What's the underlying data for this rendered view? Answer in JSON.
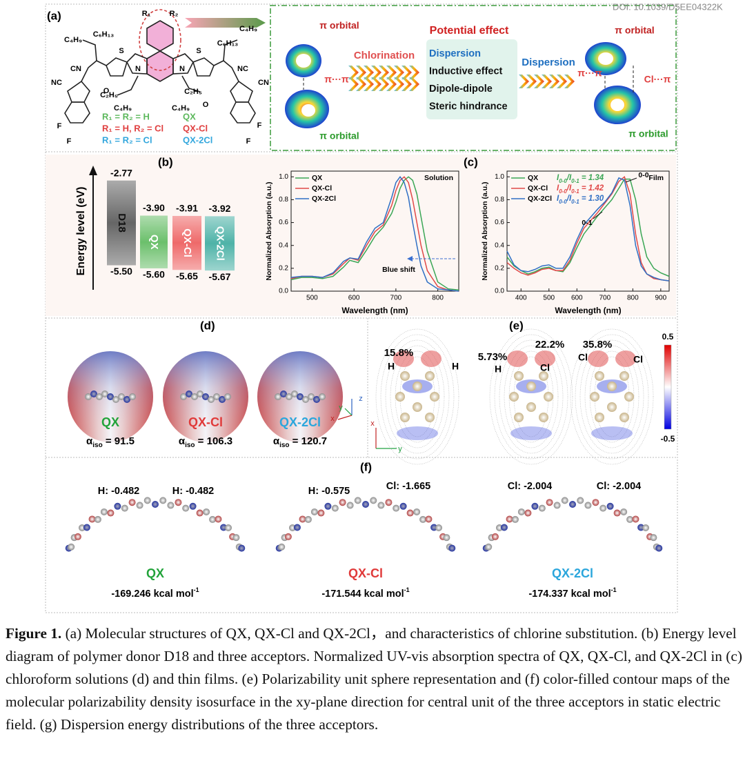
{
  "doi": "DOI: 10.1039/D5EE04322K",
  "panel_a": {
    "label": "(a)",
    "structure_labels": [
      "R₁",
      "R₂",
      "S",
      "S",
      "N",
      "N",
      "C₄H₉",
      "C₆H₁₃",
      "C₄H₉",
      "C₆H₁₃",
      "CN",
      "NC",
      "NC",
      "CN",
      "C₂H₅",
      "C₄H₉",
      "C₂H₅",
      "C₄H₉",
      "O",
      "O",
      "F",
      "F",
      "F",
      "F"
    ],
    "substituents": [
      {
        "text": "R₁ = R₂ = H",
        "name": "QX",
        "color": "#5cb85c"
      },
      {
        "text": "R₁ = H, R₂ = Cl",
        "name": "QX-Cl",
        "color": "#e04040"
      },
      {
        "text": "R₁ = R₂ = Cl",
        "name": "QX-2Cl",
        "color": "#33a7dd"
      }
    ],
    "orbital_labels": [
      "π orbital",
      "π orbital",
      "π orbital",
      "π orbital"
    ],
    "interaction_labels": [
      "π···π",
      "π···π",
      "Cl···π"
    ],
    "chlorination": "Chlorination",
    "potential_title": "Potential effect",
    "effects": [
      "Dispersion",
      "Inductive effect",
      "Dipole-dipole",
      "Steric hindrance"
    ],
    "dispersion": "Dispersion"
  },
  "panel_b": {
    "label": "(b)",
    "axis_label": "Energy level (eV)",
    "levels": [
      {
        "name": "D18",
        "lumo": -2.77,
        "lumo_label": "-2.77",
        "homo": -5.5,
        "homo_label": "-5.50",
        "color": "#666666"
      },
      {
        "name": "QX",
        "lumo": -3.9,
        "lumo_label": "-3.90",
        "homo": -5.6,
        "homo_label": "-5.60",
        "color": "#6cc06c"
      },
      {
        "name": "QX-Cl",
        "lumo": -3.91,
        "lumo_label": "-3.91",
        "homo": -5.65,
        "homo_label": "-5.65",
        "color": "#ee6a6a"
      },
      {
        "name": "QX-2Cl",
        "lumo": -3.92,
        "lumo_label": "-3.92",
        "homo": -5.67,
        "homo_label": "-5.67",
        "color": "#4fb3a8"
      }
    ]
  },
  "panel_c": {
    "label": "(c)"
  },
  "chart_data": [
    {
      "type": "line",
      "annotation": "Solution",
      "arrow_label": "Blue shift",
      "xlabel": "Wavelength (nm)",
      "ylabel": "Normalized Absorption (a.u.)",
      "x": [
        450,
        475,
        500,
        525,
        550,
        575,
        590,
        610,
        630,
        650,
        670,
        690,
        700,
        710,
        720,
        730,
        740,
        750,
        760,
        775,
        800,
        825,
        850
      ],
      "series": [
        {
          "name": "QX",
          "color": "#3aa655",
          "values": [
            0.1,
            0.12,
            0.12,
            0.11,
            0.13,
            0.21,
            0.27,
            0.25,
            0.36,
            0.48,
            0.56,
            0.68,
            0.78,
            0.9,
            0.97,
            1.0,
            0.97,
            0.85,
            0.65,
            0.35,
            0.08,
            0.02,
            0.01
          ]
        },
        {
          "name": "QX-Cl",
          "color": "#e04848",
          "values": [
            0.11,
            0.13,
            0.13,
            0.12,
            0.15,
            0.24,
            0.29,
            0.27,
            0.4,
            0.52,
            0.58,
            0.75,
            0.88,
            0.97,
            1.0,
            0.95,
            0.8,
            0.6,
            0.4,
            0.18,
            0.04,
            0.01,
            0.0
          ]
        },
        {
          "name": "QX-2Cl",
          "color": "#2f6fc4",
          "values": [
            0.12,
            0.13,
            0.13,
            0.12,
            0.16,
            0.26,
            0.29,
            0.28,
            0.43,
            0.55,
            0.6,
            0.82,
            0.95,
            1.0,
            0.95,
            0.82,
            0.6,
            0.4,
            0.22,
            0.08,
            0.02,
            0.01,
            0.0
          ]
        }
      ],
      "xlim": [
        450,
        850
      ],
      "xticks": [
        500,
        600,
        700,
        800
      ],
      "ylim": [
        0,
        1.05
      ],
      "yticks": [
        {
          "value": 0,
          "label": "0.0"
        },
        0.2,
        0.4,
        0.6,
        0.8,
        {
          "value": 1,
          "label": "1.0"
        }
      ]
    },
    {
      "type": "line",
      "annotation": "Film",
      "peak_labels": [
        "0-0",
        "0-1"
      ],
      "xlabel": "Wavelength (nm)",
      "ylabel": "Normalized Absorption (a.u.)",
      "x": [
        350,
        375,
        400,
        425,
        450,
        475,
        500,
        525,
        550,
        575,
        600,
        625,
        650,
        675,
        700,
        725,
        750,
        770,
        790,
        810,
        830,
        850,
        875,
        900,
        930
      ],
      "series": [
        {
          "name": "QX",
          "color": "#3aa655",
          "values": [
            0.3,
            0.22,
            0.18,
            0.15,
            0.17,
            0.2,
            0.21,
            0.18,
            0.17,
            0.25,
            0.38,
            0.5,
            0.58,
            0.66,
            0.73,
            0.8,
            0.9,
            0.98,
            0.98,
            0.8,
            0.5,
            0.3,
            0.2,
            0.16,
            0.13
          ]
        },
        {
          "name": "QX-Cl",
          "color": "#e04848",
          "values": [
            0.25,
            0.2,
            0.16,
            0.14,
            0.16,
            0.19,
            0.2,
            0.18,
            0.18,
            0.27,
            0.42,
            0.55,
            0.62,
            0.69,
            0.77,
            0.85,
            0.96,
            1.0,
            0.85,
            0.5,
            0.25,
            0.15,
            0.11,
            0.1,
            0.09
          ]
        },
        {
          "name": "QX-2Cl",
          "color": "#2f6fc4",
          "values": [
            0.35,
            0.23,
            0.18,
            0.17,
            0.19,
            0.22,
            0.23,
            0.2,
            0.2,
            0.3,
            0.45,
            0.58,
            0.65,
            0.72,
            0.78,
            0.86,
            0.99,
            0.97,
            0.75,
            0.4,
            0.22,
            0.15,
            0.12,
            0.1,
            0.09
          ]
        }
      ],
      "ratio_labels": [
        {
          "a": "I",
          "b": "0-0",
          "c": "/I",
          "d": "0-1",
          "e": " = 1.34"
        },
        {
          "a": "I",
          "b": "0-0",
          "c": "/I",
          "d": "0-1",
          "e": " = 1.42"
        },
        {
          "a": "I",
          "b": "0-0",
          "c": "/I",
          "d": "0-1",
          "e": " = 1.30"
        }
      ],
      "xlim": [
        350,
        930
      ],
      "xticks": [
        400,
        500,
        600,
        700,
        800,
        900
      ],
      "ylim": [
        0,
        1.05
      ],
      "yticks": [
        {
          "value": 0,
          "label": "0.0"
        },
        0.2,
        0.4,
        0.6,
        0.8,
        {
          "value": 1,
          "label": "1.0"
        }
      ]
    }
  ],
  "panel_d": {
    "label": "(d)",
    "axes": [
      "z",
      "y",
      "x"
    ],
    "molecules": [
      {
        "name": "QX",
        "color": "#22a33a",
        "alpha": "α",
        "sub": "iso",
        "value": " = 91.5"
      },
      {
        "name": "QX-Cl",
        "color": "#e03a3a",
        "alpha": "α",
        "sub": "iso",
        "value": " = 106.3"
      },
      {
        "name": "QX-2Cl",
        "color": "#2ba6dc",
        "alpha": "α",
        "sub": "iso",
        "value": " = 120.7"
      }
    ]
  },
  "panel_e": {
    "label": "(e)",
    "percents": [
      "15.8%",
      "5.73%",
      "22.2%",
      "35.8%"
    ],
    "atoms": [
      "H",
      "H",
      "H",
      "Cl",
      "Cl",
      "Cl"
    ],
    "colorbar": [
      "0.5",
      "-0.5"
    ],
    "axes": [
      "x",
      "y"
    ]
  },
  "panel_f": {
    "label": "(f)",
    "charges": [
      "H: -0.482",
      "H: -0.482",
      "H: -0.575",
      "Cl: -1.665",
      "Cl: -2.004",
      "Cl: -2.004"
    ],
    "molecules": [
      {
        "name": "QX",
        "color": "#22a33a",
        "energy": "-169.246 kcal mol",
        "power": "-1"
      },
      {
        "name": "QX-Cl",
        "color": "#e03a3a",
        "energy": "-171.544 kcal mol",
        "power": "-1"
      },
      {
        "name": "QX-2Cl",
        "color": "#2ba6dc",
        "energy": "-174.337 kcal mol",
        "power": "-1"
      }
    ]
  },
  "caption": {
    "bold": "Figure 1.",
    "text": " (a) Molecular structures of QX, QX-Cl and QX-2Cl，and characteristics of chlorine substitution. (b) Energy level diagram of polymer donor D18 and three acceptors. Normalized UV-vis absorption spectra of QX, QX-Cl, and QX-2Cl in (c) chloroform solutions (d) and thin films. (e) Polarizability unit sphere representation and (f) color-filled contour maps of the molecular polarizability density isosurface in the xy-plane direction for central unit of the three acceptors in static electric field. (g) Dispersion energy distributions of the three acceptors."
  }
}
